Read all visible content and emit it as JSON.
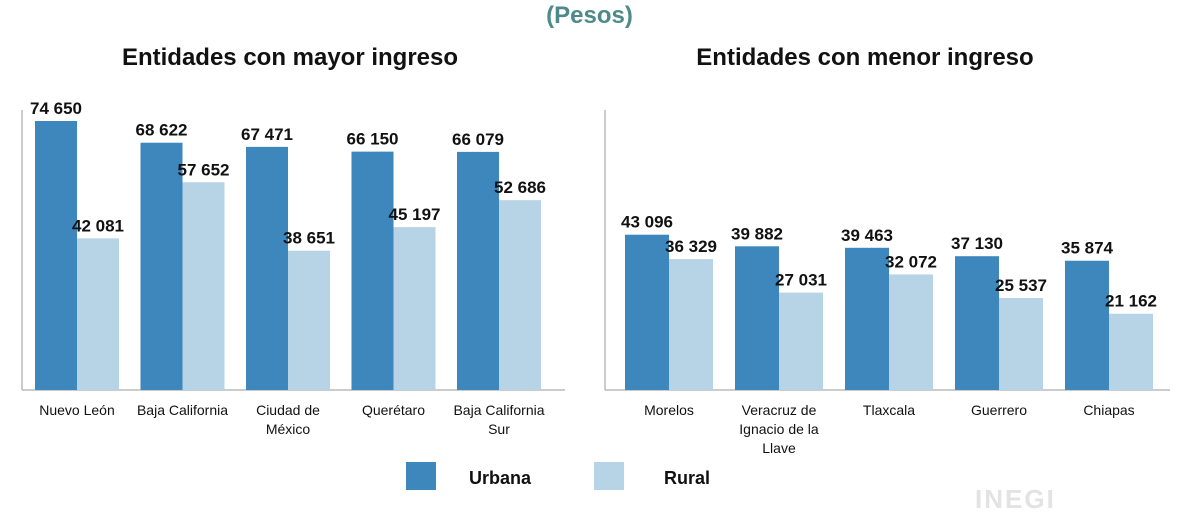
{
  "subtitle": "(Pesos)",
  "colors": {
    "subtitle": "#4e8a89",
    "urbana": "#3d87bd",
    "rural": "#b7d3e6",
    "axis": "#9a9a9a"
  },
  "legend": {
    "urbana": "Urbana",
    "rural": "Rural"
  },
  "logo_text": "INEGI",
  "chart_data": [
    {
      "type": "bar",
      "title": "Entidades con mayor ingreso",
      "categories": [
        [
          "Nuevo León"
        ],
        [
          "Baja California"
        ],
        [
          "Ciudad de",
          "México"
        ],
        [
          "Querétaro"
        ],
        [
          "Baja California",
          "Sur"
        ]
      ],
      "series": [
        {
          "name": "Urbana",
          "values": [
            74650,
            68622,
            67471,
            66150,
            66079
          ],
          "labels": [
            "74 650",
            "68 622",
            "67 471",
            "66 150",
            "66 079"
          ]
        },
        {
          "name": "Rural",
          "values": [
            42081,
            57652,
            38651,
            45197,
            52686
          ],
          "labels": [
            "42 081",
            "57 652",
            "38 651",
            "45 197",
            "52 686"
          ]
        }
      ],
      "ylim": [
        0,
        75000
      ],
      "grid": false
    },
    {
      "type": "bar",
      "title": "Entidades con menor ingreso",
      "categories": [
        [
          "Morelos"
        ],
        [
          "Veracruz de",
          "Ignacio de la",
          "Llave"
        ],
        [
          "Tlaxcala"
        ],
        [
          "Guerrero"
        ],
        [
          "Chiapas"
        ]
      ],
      "series": [
        {
          "name": "Urbana",
          "values": [
            43096,
            39882,
            39463,
            37130,
            35874
          ],
          "labels": [
            "43 096",
            "39 882",
            "39 463",
            "37 130",
            "35 874"
          ]
        },
        {
          "name": "Rural",
          "values": [
            36329,
            27031,
            32072,
            25537,
            21162
          ],
          "labels": [
            "36 329",
            "27 031",
            "32 072",
            "25 537",
            "21 162"
          ]
        }
      ],
      "ylim": [
        0,
        75000
      ],
      "grid": false
    }
  ]
}
